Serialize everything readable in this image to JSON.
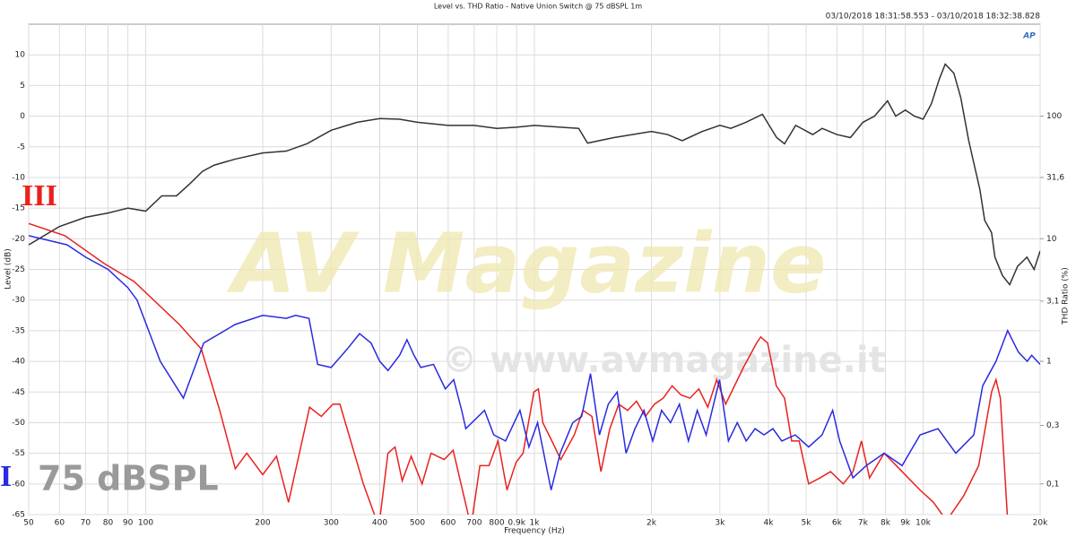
{
  "chart_data": {
    "type": "line",
    "title": "Level vs. THD Ratio - Native Union Switch @ 75 dBSPL 1m",
    "subtitle": "03/10/2018 18:31:58.553 - 03/10/2018 18:32:38.828",
    "x_label": "Frequency (Hz)",
    "y_label": "Level (dB)",
    "y2_label": "THD Ratio (%)",
    "annotations": [
      "75 dBSPL",
      "AV Magazine",
      "© www.avmagazine.it",
      "AP"
    ],
    "xscale": "log",
    "y2scale": "log",
    "grid": true,
    "xlim": [
      50,
      20000
    ],
    "xticks": [
      50,
      60,
      70,
      80,
      90,
      100,
      200,
      300,
      400,
      500,
      600,
      700,
      800,
      {
        "value": 900,
        "label": "0.9k"
      },
      {
        "value": 1000,
        "label": "1k"
      },
      {
        "value": 2000,
        "label": "2k"
      },
      {
        "value": 3000,
        "label": "3k"
      },
      {
        "value": 4000,
        "label": "4k"
      },
      {
        "value": 5000,
        "label": "5k"
      },
      {
        "value": 6000,
        "label": "6k"
      },
      {
        "value": 7000,
        "label": "7k"
      },
      {
        "value": 8000,
        "label": "8k"
      },
      {
        "value": 9000,
        "label": "9k"
      },
      {
        "value": 10000,
        "label": "10k"
      },
      {
        "value": 20000,
        "label": "20k"
      }
    ],
    "ylim": [
      -65,
      15
    ],
    "yticks": [
      10,
      5,
      0,
      -5,
      -10,
      -15,
      -20,
      -25,
      -30,
      -35,
      -40,
      -45,
      -50,
      -55,
      -60,
      -65
    ],
    "y2lim": [
      0.0562,
      562
    ],
    "y2ticks": [
      100,
      {
        "value": 31.6,
        "label": "31,6"
      },
      10,
      {
        "value": 3.1,
        "label": "3,1"
      },
      1,
      {
        "value": 0.3,
        "label": "0,3"
      },
      {
        "value": 0.1,
        "label": "0,1"
      }
    ],
    "series": [
      {
        "color": "#333333",
        "axis": "y",
        "x": [
          50,
          60,
          70,
          80,
          90,
          100,
          110,
          120,
          130,
          140,
          150,
          170,
          200,
          230,
          260,
          300,
          350,
          400,
          450,
          500,
          600,
          700,
          800,
          900,
          1000,
          1300,
          1370,
          1600,
          2000,
          2200,
          2400,
          2700,
          3000,
          3200,
          3500,
          3860,
          4200,
          4400,
          4700,
          5200,
          5500,
          6000,
          6500,
          7000,
          7500,
          8100,
          8500,
          9000,
          9500,
          10000,
          10500,
          11000,
          11400,
          12000,
          12500,
          13100,
          14000,
          14400,
          15000,
          15300,
          16000,
          16700,
          17500,
          18500,
          19300,
          20000
        ],
        "values": [
          -21,
          -18,
          -16.5,
          -15.8,
          -15,
          -15.5,
          -13,
          -13,
          -11,
          -9,
          -8,
          -7,
          -6,
          -5.7,
          -4.5,
          -2.3,
          -1,
          -0.4,
          -0.5,
          -1,
          -1.5,
          -1.5,
          -2,
          -1.8,
          -1.5,
          -2,
          -4.4,
          -3.5,
          -2.5,
          -3,
          -4,
          -2.5,
          -1.5,
          -2,
          -1,
          0.3,
          -3.5,
          -4.5,
          -1.5,
          -3,
          -2,
          -3,
          -3.5,
          -1,
          0,
          2.5,
          0,
          1,
          0,
          -0.5,
          2,
          6,
          8.5,
          7,
          3,
          -4,
          -12,
          -17,
          -19,
          -23,
          -26,
          -27.5,
          -24.5,
          -23,
          -25,
          -22
        ]
      },
      {
        "name": "III",
        "color": "#e8221f",
        "axis": "y2",
        "x": [
          50,
          61.9,
          78,
          93.4,
          122,
          139,
          155,
          170,
          182,
          200,
          217,
          233,
          264,
          283,
          303,
          316,
          363,
          398,
          420,
          438,
          457,
          482,
          514,
          542,
          586,
          618,
          687,
          724,
          764,
          806,
          850,
          897,
          935,
          997,
          1024,
          1051,
          1109,
          1169,
          1266,
          1334,
          1406,
          1483,
          1563,
          1648,
          1737,
          1831,
          1930,
          2036,
          2145,
          2261,
          2384,
          2513,
          2649,
          2793,
          2944,
          3104,
          3272,
          3449,
          3729,
          3822,
          3980,
          4190,
          4400,
          4590,
          4800,
          5076,
          5430,
          5780,
          6230,
          6600,
          6940,
          7280,
          7940,
          8830,
          9820,
          10630,
          11490,
          12700,
          13900,
          15000,
          15400,
          15800,
          16500
        ],
        "values": [
          13.3,
          10.6,
          6.31,
          4.47,
          2.0,
          1.26,
          0.398,
          0.133,
          0.178,
          0.119,
          0.168,
          0.0708,
          0.422,
          0.355,
          0.447,
          0.447,
          0.1,
          0.0447,
          0.178,
          0.2,
          0.106,
          0.168,
          0.1,
          0.178,
          0.158,
          0.188,
          0.0447,
          0.141,
          0.141,
          0.224,
          0.0891,
          0.15,
          0.178,
          0.562,
          0.596,
          0.316,
          0.224,
          0.158,
          0.251,
          0.398,
          0.355,
          0.126,
          0.282,
          0.447,
          0.398,
          0.473,
          0.355,
          0.447,
          0.501,
          0.631,
          0.531,
          0.501,
          0.596,
          0.422,
          0.708,
          0.447,
          0.631,
          0.891,
          1.41,
          1.58,
          1.41,
          0.631,
          0.501,
          0.224,
          0.224,
          0.1,
          0.112,
          0.126,
          0.1,
          0.126,
          0.224,
          0.112,
          0.178,
          0.126,
          0.0891,
          0.0708,
          0.0501,
          0.0794,
          0.141,
          0.562,
          0.708,
          0.501,
          0.0501
        ]
      },
      {
        "name": "II",
        "color": "#2a2ae0",
        "axis": "y2",
        "x": [
          50,
          62.8,
          70,
          80,
          90,
          95,
          109,
          125,
          141,
          170,
          200,
          230,
          243,
          263,
          277,
          300,
          330,
          355,
          380,
          400,
          420,
          450,
          470,
          490,
          510,
          550,
          590,
          620,
          650,
          666,
          744,
          786,
          843,
          918,
          968,
          1019,
          1104,
          1165,
          1255,
          1323,
          1394,
          1470,
          1549,
          1633,
          1721,
          1814,
          1913,
          2016,
          2124,
          2240,
          2361,
          2490,
          2624,
          2766,
          2916,
          2994,
          3156,
          3326,
          3506,
          3696,
          3896,
          4107,
          4330,
          4688,
          5076,
          5494,
          5851,
          6100,
          6600,
          7140,
          7940,
          8830,
          9820,
          10920,
          12140,
          13500,
          14230,
          15400,
          16500,
          17580,
          18530,
          19020,
          20000
        ],
        "values": [
          10.6,
          8.91,
          7.08,
          5.62,
          3.98,
          3.16,
          1,
          0.501,
          1.41,
          2.0,
          2.37,
          2.24,
          2.37,
          2.24,
          0.944,
          0.891,
          1.26,
          1.68,
          1.41,
          1,
          0.841,
          1.12,
          1.5,
          1.12,
          0.891,
          0.944,
          0.596,
          0.708,
          0.398,
          0.282,
          0.398,
          0.251,
          0.224,
          0.398,
          0.2,
          0.316,
          0.0891,
          0.178,
          0.316,
          0.355,
          0.794,
          0.251,
          0.447,
          0.562,
          0.178,
          0.282,
          0.398,
          0.224,
          0.398,
          0.316,
          0.447,
          0.224,
          0.398,
          0.251,
          0.501,
          0.708,
          0.224,
          0.316,
          0.224,
          0.282,
          0.251,
          0.282,
          0.224,
          0.251,
          0.2,
          0.251,
          0.398,
          0.224,
          0.112,
          0.141,
          0.178,
          0.141,
          0.251,
          0.282,
          0.178,
          0.251,
          0.631,
          1,
          1.78,
          1.19,
          1,
          1.12,
          0.944
        ]
      }
    ]
  }
}
